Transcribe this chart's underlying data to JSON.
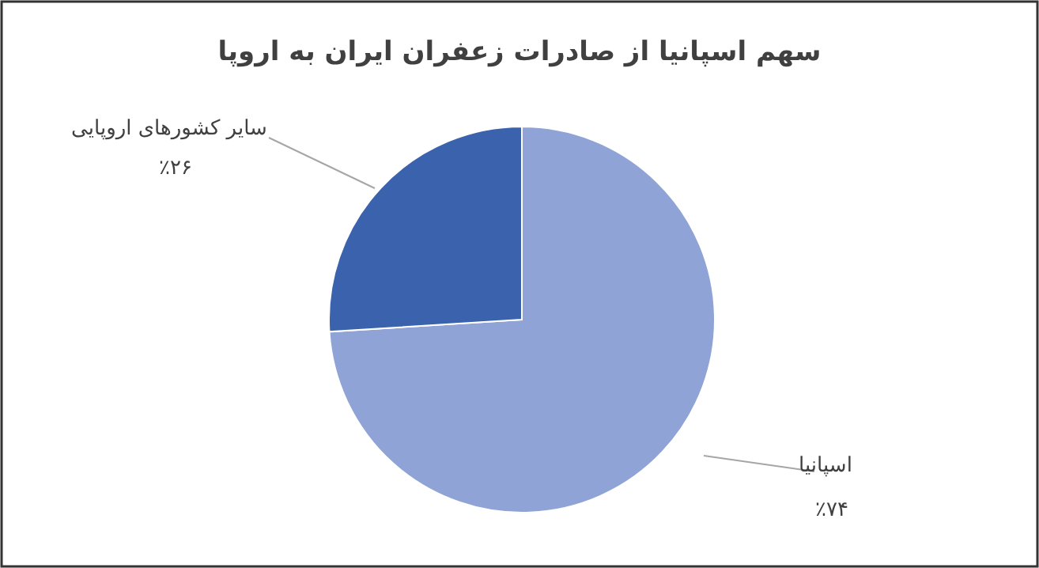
{
  "chart_data": {
    "type": "pie",
    "title": "سهم اسپانیا از صادرات زعفران ایران به اروپا",
    "categories": [
      "اسپانیا",
      "سایر کشورهای اروپایی"
    ],
    "values": [
      74,
      26
    ],
    "colors": [
      "#8fa3d6",
      "#3a62ad"
    ],
    "value_labels": [
      "٪۷۴",
      "٪۲۶"
    ]
  }
}
